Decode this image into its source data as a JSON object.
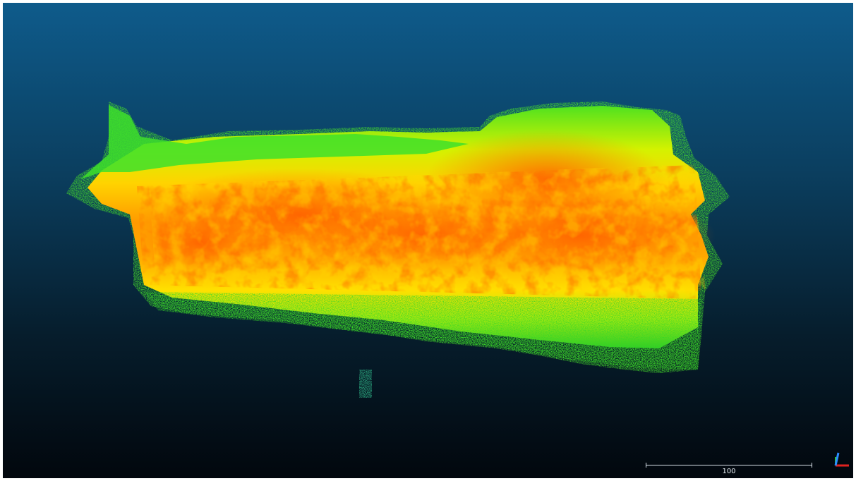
{
  "viewer": {
    "scale_bar": {
      "label": "100"
    },
    "axes_icon": "xyz-trihedron-icon",
    "colors": {
      "background_top": "#0e5b8b",
      "background_bottom": "#02070d",
      "cloud_high": "#ff6a00",
      "cloud_mid": "#ffe800",
      "cloud_low": "#39e62a",
      "axis_x": "#e0221f",
      "axis_y": "#2ad12e",
      "axis_z": "#2a8cff"
    }
  }
}
